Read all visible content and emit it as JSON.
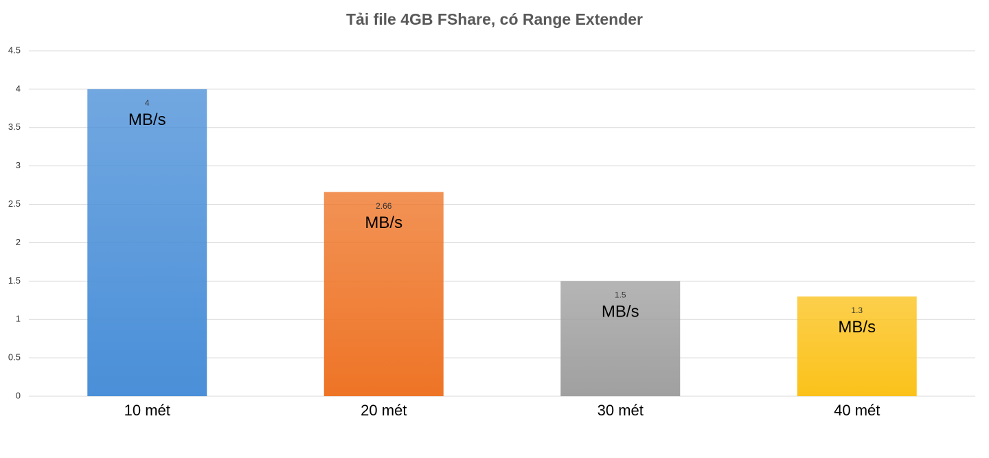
{
  "chart_data": {
    "type": "bar",
    "title": "Tải file 4GB FShare, có Range Extender",
    "categories": [
      "10 mét",
      "20 mét",
      "30 mét",
      "40 mét"
    ],
    "values": [
      4,
      2.66,
      1.5,
      1.3
    ],
    "colors": [
      "#4a8fd8",
      "#ee7426",
      "#a0a0a0",
      "#fbc21a"
    ],
    "unit_label": "MB/s",
    "ylim": [
      0,
      4.5
    ],
    "yticks": [
      0,
      0.5,
      1,
      1.5,
      2,
      2.5,
      3,
      3.5,
      4,
      4.5
    ],
    "grid": true
  }
}
